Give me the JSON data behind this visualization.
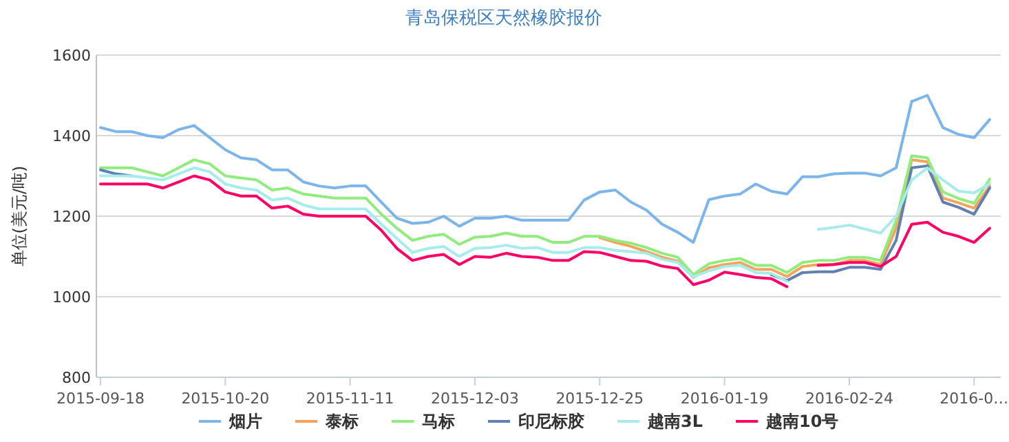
{
  "chart_data": {
    "type": "line",
    "title": "青岛保税区天然橡胶报价",
    "ylabel": "单位(美元/吨)",
    "categories": [
      "2015-09-18",
      null,
      null,
      null,
      null,
      null,
      null,
      null,
      "2015-10-20",
      null,
      null,
      null,
      null,
      null,
      null,
      null,
      "2015-11-11",
      null,
      null,
      null,
      null,
      null,
      null,
      null,
      "2015-12-03",
      null,
      null,
      null,
      null,
      null,
      null,
      null,
      "2015-12-25",
      null,
      null,
      null,
      null,
      null,
      null,
      null,
      "2016-01-19",
      null,
      null,
      null,
      null,
      null,
      null,
      null,
      "2016-02-24",
      null,
      null,
      null,
      null,
      null,
      null,
      null,
      "2016-0…",
      null
    ],
    "ylim": [
      800,
      1600
    ],
    "yticks": [
      800,
      1000,
      1200,
      1400,
      1600
    ],
    "grid": "y",
    "legend": "bottom",
    "marker": "none",
    "line_style": "solid",
    "series": [
      {
        "name": "烟片",
        "color": "#7cb5ec",
        "values": [
          1420,
          1410,
          1410,
          1400,
          1395,
          1415,
          1425,
          1395,
          1365,
          1345,
          1340,
          1315,
          1315,
          1285,
          1275,
          1270,
          1275,
          1275,
          1235,
          1195,
          1182,
          1185,
          1200,
          1175,
          1195,
          1195,
          1200,
          1190,
          1190,
          1190,
          1190,
          1240,
          1260,
          1265,
          1235,
          1215,
          1180,
          1160,
          1135,
          1241,
          1250,
          1255,
          1280,
          1262,
          1255,
          1298,
          1298,
          1305,
          1307,
          1307,
          1300,
          1320,
          1485,
          1500,
          1420,
          1403,
          1395,
          1440
        ]
      },
      {
        "name": "泰标",
        "color": "#f7a35c",
        "values": [
          null,
          null,
          null,
          null,
          null,
          null,
          null,
          null,
          null,
          null,
          null,
          null,
          null,
          null,
          null,
          null,
          null,
          null,
          null,
          null,
          null,
          null,
          null,
          null,
          null,
          null,
          null,
          null,
          null,
          null,
          null,
          null,
          1147,
          1135,
          1125,
          1112,
          1098,
          1088,
          1048,
          1072,
          1080,
          1085,
          1068,
          1068,
          1050,
          1075,
          1080,
          1080,
          1090,
          1090,
          1080,
          1170,
          1340,
          1335,
          1245,
          1233,
          1220,
          1275
        ]
      },
      {
        "name": "马标",
        "color": "#90ed7d",
        "values": [
          1320,
          1320,
          1320,
          1310,
          1300,
          1320,
          1340,
          1330,
          1300,
          1295,
          1290,
          1265,
          1270,
          1255,
          1250,
          1245,
          1245,
          1245,
          1205,
          1170,
          1140,
          1150,
          1155,
          1130,
          1148,
          1150,
          1158,
          1150,
          1150,
          1135,
          1135,
          1150,
          1150,
          1140,
          1133,
          1122,
          1108,
          1098,
          1055,
          1082,
          1090,
          1095,
          1078,
          1078,
          1060,
          1085,
          1090,
          1090,
          1098,
          1098,
          1090,
          1190,
          1350,
          1345,
          1260,
          1244,
          1232,
          1292
        ]
      },
      {
        "name": "印尼标胶",
        "color": "#5f7fb5",
        "values": [
          1315,
          1305,
          1300,
          null,
          null,
          null,
          null,
          null,
          null,
          null,
          null,
          null,
          null,
          null,
          null,
          null,
          null,
          null,
          null,
          null,
          null,
          null,
          null,
          null,
          null,
          null,
          null,
          null,
          null,
          null,
          null,
          null,
          null,
          null,
          null,
          null,
          null,
          null,
          null,
          null,
          null,
          null,
          null,
          1055,
          1040,
          1060,
          1062,
          1062,
          1073,
          1073,
          1068,
          1140,
          1320,
          1325,
          1235,
          1222,
          1205,
          1270
        ]
      },
      {
        "name": "越南3L",
        "color": "#a6ecec",
        "values": [
          1300,
          1300,
          1300,
          1295,
          1290,
          1305,
          1320,
          1310,
          1280,
          1270,
          1265,
          1240,
          1245,
          1228,
          1218,
          1218,
          1218,
          1218,
          1180,
          1145,
          1110,
          1120,
          1125,
          1100,
          1120,
          1122,
          1128,
          1120,
          1122,
          1110,
          1110,
          1122,
          1122,
          1115,
          1112,
          1108,
          1093,
          1085,
          1050,
          1064,
          1075,
          1078,
          1060,
          1058,
          1038,
          null,
          1167,
          1172,
          1178,
          1168,
          1158,
          1200,
          1290,
          1320,
          1290,
          1262,
          1258,
          1281
        ]
      },
      {
        "name": "越南10号",
        "color": "#ff0066",
        "values": [
          1280,
          1280,
          1280,
          1280,
          1270,
          1285,
          1300,
          1290,
          1260,
          1250,
          1250,
          1220,
          1225,
          1205,
          1200,
          1200,
          1200,
          1200,
          1165,
          1120,
          1090,
          1100,
          1105,
          1080,
          1100,
          1098,
          1108,
          1100,
          1098,
          1090,
          1090,
          1112,
          1110,
          1100,
          1090,
          1088,
          1076,
          1070,
          1030,
          1041,
          1061,
          1055,
          1048,
          1045,
          1025,
          null,
          1078,
          1080,
          1085,
          1085,
          1075,
          1100,
          1180,
          1185,
          1160,
          1150,
          1135,
          1170
        ]
      }
    ]
  }
}
